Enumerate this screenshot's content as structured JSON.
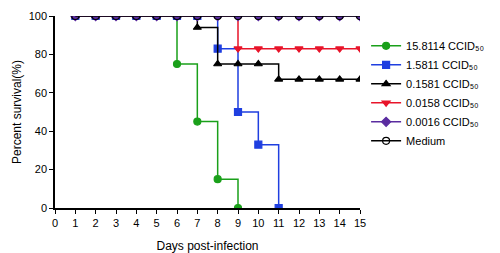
{
  "chart_data": {
    "type": "line",
    "line_style": "step",
    "x_label": "Days post-infection",
    "y_label": "Percent survival(%)",
    "x": [
      1,
      2,
      3,
      4,
      5,
      6,
      7,
      8,
      9,
      10,
      11,
      12,
      13,
      14,
      15
    ],
    "xlim": [
      0,
      15
    ],
    "xticks": [
      0,
      1,
      2,
      3,
      4,
      5,
      6,
      7,
      8,
      9,
      10,
      11,
      12,
      13,
      14,
      15
    ],
    "ylim": [
      0,
      100
    ],
    "yticks": [
      0,
      20,
      40,
      60,
      80,
      100
    ],
    "grid": false,
    "legend": "right",
    "series": [
      {
        "name": "15.8114 CCID₅₀",
        "color": "#1aa01a",
        "marker": "circle",
        "values": [
          100,
          100,
          100,
          100,
          100,
          75,
          45,
          15,
          0,
          null,
          null,
          null,
          null,
          null,
          null
        ]
      },
      {
        "name": "1.5811 CCID₅₀",
        "color": "#1f3fe0",
        "marker": "square",
        "values": [
          100,
          100,
          100,
          100,
          100,
          100,
          100,
          83,
          50,
          33,
          0,
          null,
          null,
          null,
          null
        ]
      },
      {
        "name": "0.1581 CCID₅₀",
        "color": "#000000",
        "marker": "triangle-up",
        "values": [
          100,
          100,
          100,
          100,
          100,
          100,
          94,
          75,
          75,
          75,
          67,
          67,
          67,
          67,
          67
        ]
      },
      {
        "name": "0.0158 CCID₅₀",
        "color": "#e8142a",
        "marker": "triangle-down",
        "values": [
          100,
          100,
          100,
          100,
          100,
          100,
          100,
          100,
          83,
          83,
          83,
          83,
          83,
          83,
          83
        ]
      },
      {
        "name": "0.0016 CCID₅₀",
        "color": "#5a2ca0",
        "marker": "diamond",
        "values": [
          100,
          100,
          100,
          100,
          100,
          100,
          100,
          100,
          100,
          100,
          100,
          100,
          100,
          100,
          100
        ]
      },
      {
        "name": "Medium",
        "color": "#000000",
        "marker": "circle-open",
        "values": [
          100,
          100,
          100,
          100,
          100,
          100,
          100,
          100,
          100,
          100,
          100,
          100,
          100,
          100,
          100
        ]
      }
    ]
  }
}
